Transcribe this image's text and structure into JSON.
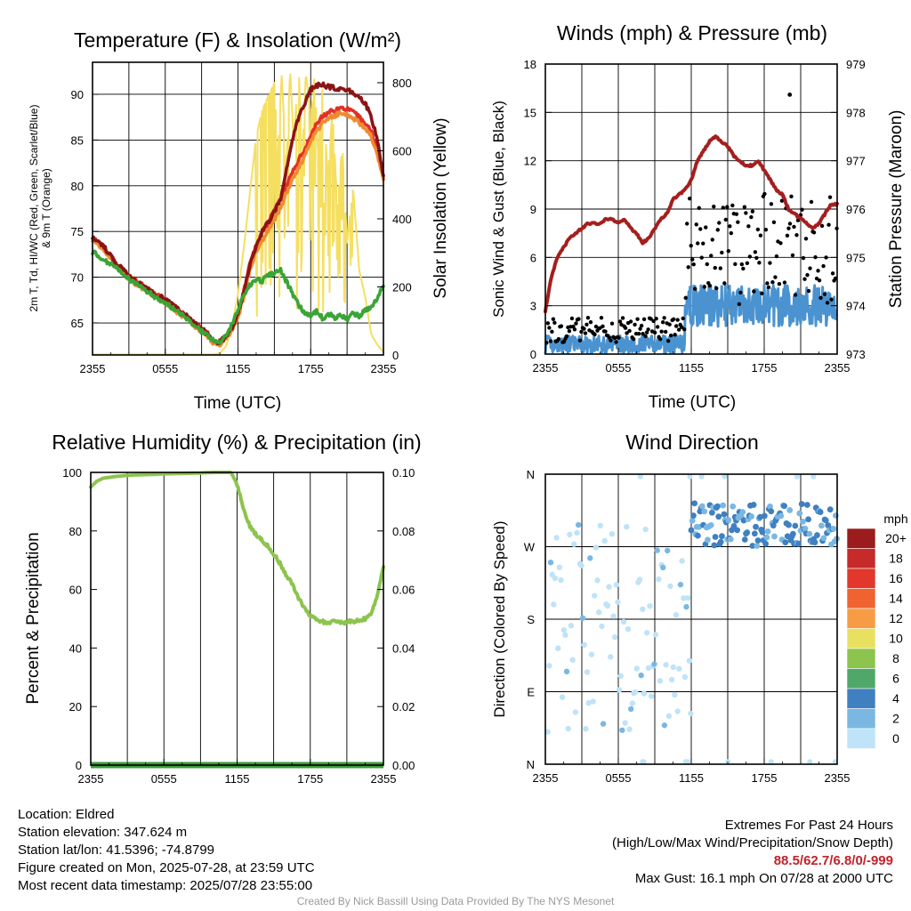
{
  "chart_data": [
    {
      "type": "line",
      "title": "Temperature (F) & Insolation (W/m²)",
      "ylabel_lines": [
        "2m T, Td, HI/WC (Red, Green, Scarlet/Blue)",
        "& 9m T (Orange)"
      ],
      "y2label": "Solar Insolation (Yellow)",
      "xlabel": "Time (UTC)",
      "x_ticks": [
        "2355",
        "0555",
        "1155",
        "1755",
        "2355"
      ],
      "x_range_hours": [
        0,
        24
      ],
      "ylim": [
        61.5,
        93.5
      ],
      "y_ticks": [
        65,
        70,
        75,
        80,
        85,
        90
      ],
      "y2lim": [
        0,
        860
      ],
      "y2_ticks": [
        0,
        200,
        400,
        600,
        800
      ],
      "series": [
        {
          "color": "#e03127",
          "axis": "left",
          "x": [
            0,
            1,
            2,
            3,
            4,
            5,
            6,
            7,
            8,
            9,
            9.5,
            10,
            10.5,
            11,
            11.5,
            12,
            12.5,
            13,
            13.5,
            14,
            14.5,
            15,
            15.5,
            16,
            16.5,
            17,
            17.5,
            18,
            18.5,
            19,
            19.5,
            20,
            20.5,
            21,
            21.5,
            22,
            22.5,
            23,
            23.5,
            24
          ],
          "y": [
            74.5,
            73.2,
            71.5,
            70.1,
            69.2,
            68.3,
            67.6,
            66.5,
            65.5,
            64.3,
            63.8,
            63.0,
            62.9,
            63.5,
            64.5,
            66.0,
            68.5,
            71.5,
            73.5,
            75.0,
            76.0,
            77.2,
            78.5,
            80.0,
            81.5,
            82.8,
            84.0,
            85.5,
            86.8,
            87.6,
            88.0,
            88.3,
            88.5,
            88.4,
            88.0,
            87.5,
            86.8,
            86.0,
            84.0,
            81.0
          ]
        },
        {
          "color": "#f08a30",
          "axis": "left",
          "x": [
            0,
            1,
            2,
            3,
            4,
            5,
            6,
            7,
            8,
            9,
            9.5,
            10,
            10.5,
            11,
            11.5,
            12,
            12.5,
            13,
            13.5,
            14,
            14.5,
            15,
            15.5,
            16,
            16.5,
            17,
            17.5,
            18,
            18.5,
            19,
            19.5,
            20,
            20.5,
            21,
            21.5,
            22,
            22.5,
            23,
            23.5,
            24
          ],
          "y": [
            74.2,
            72.9,
            71.2,
            69.8,
            68.9,
            68.0,
            67.3,
            66.2,
            65.2,
            64.0,
            63.5,
            62.8,
            62.7,
            63.2,
            64.2,
            65.6,
            68.0,
            71.0,
            72.8,
            74.0,
            75.2,
            76.4,
            77.6,
            79.2,
            80.8,
            82.0,
            83.2,
            84.8,
            86.0,
            86.9,
            87.4,
            87.7,
            88.0,
            87.8,
            87.4,
            86.9,
            86.2,
            85.4,
            83.5,
            80.5
          ]
        },
        {
          "color": "#8b1414",
          "axis": "left",
          "x": [
            0,
            1,
            2,
            3,
            4,
            5,
            6,
            7,
            8,
            9,
            9.5,
            10,
            10.5,
            11,
            11.5,
            12,
            12.5,
            13,
            13.5,
            14,
            14.5,
            15,
            15.5,
            16,
            16.5,
            17,
            17.5,
            18,
            18.5,
            19,
            19.5,
            20,
            20.5,
            21,
            21.5,
            22,
            22.5,
            23,
            23.5,
            24
          ],
          "y": [
            74.5,
            73.2,
            71.5,
            70.1,
            69.2,
            68.3,
            67.6,
            66.5,
            65.5,
            64.3,
            63.8,
            63.0,
            62.9,
            63.5,
            64.5,
            66.0,
            68.5,
            71.5,
            73.5,
            75.0,
            76.0,
            77.2,
            78.5,
            82.0,
            85.0,
            87.5,
            89.0,
            90.5,
            91.0,
            91.0,
            90.8,
            90.7,
            90.5,
            90.5,
            90.2,
            89.8,
            89.0,
            87.5,
            85.0,
            81.0
          ]
        },
        {
          "color": "#3aa537",
          "axis": "left",
          "x": [
            0,
            1,
            2,
            3,
            4,
            5,
            6,
            7,
            8,
            9,
            9.5,
            10,
            10.5,
            11,
            11.5,
            12,
            12.5,
            13,
            13.5,
            14,
            14.5,
            15,
            15.5,
            16,
            16.5,
            17,
            17.5,
            18,
            18.5,
            19,
            19.5,
            20,
            20.5,
            21,
            21.5,
            22,
            22.5,
            23,
            23.5,
            24
          ],
          "y": [
            72.8,
            71.8,
            70.9,
            69.8,
            69.0,
            68.0,
            67.2,
            66.2,
            65.2,
            64.1,
            63.6,
            63.0,
            62.9,
            63.5,
            64.8,
            66.5,
            68.2,
            69.2,
            69.8,
            69.6,
            70.2,
            70.4,
            70.8,
            69.5,
            68.2,
            67.0,
            66.0,
            65.8,
            66.3,
            65.5,
            66.0,
            65.6,
            65.8,
            65.4,
            66.0,
            65.8,
            66.4,
            66.8,
            67.8,
            69.0
          ]
        },
        {
          "color": "#f5df60",
          "axis": "right",
          "x": [
            0,
            1,
            2,
            3,
            4,
            5,
            6,
            7,
            8,
            9,
            10,
            10.5,
            11,
            11.5,
            12,
            12.5,
            13,
            13.5,
            14,
            14.5,
            15,
            15.3,
            15.6,
            16,
            16.3,
            16.6,
            17,
            17.3,
            17.6,
            18,
            18.3,
            18.6,
            19,
            19.4,
            19.8,
            20.2,
            20.6,
            21,
            21.5,
            22,
            22.5,
            23,
            23.5,
            24
          ],
          "y": [
            2,
            2,
            2,
            2,
            2,
            2,
            2,
            2,
            2,
            2,
            2,
            5,
            25,
            80,
            180,
            320,
            480,
            640,
            720,
            760,
            800,
            600,
            820,
            560,
            840,
            620,
            850,
            580,
            830,
            700,
            810,
            600,
            800,
            520,
            720,
            430,
            620,
            330,
            490,
            250,
            170,
            60,
            30,
            8
          ]
        }
      ]
    },
    {
      "type": "scatter",
      "title": "Winds (mph) & Pressure (mb)",
      "ylabel": "Sonic Wind & Gust (Blue, Black)",
      "y2label": "Station Pressure (Maroon)",
      "xlabel": "Time (UTC)",
      "x_ticks": [
        "2355",
        "0555",
        "1155",
        "1755",
        "2355"
      ],
      "x_range_hours": [
        0,
        24
      ],
      "ylim": [
        0,
        18
      ],
      "y_ticks": [
        0,
        3,
        6,
        9,
        12,
        15,
        18
      ],
      "y2lim": [
        973,
        979
      ],
      "y2_ticks": [
        973,
        974,
        975,
        976,
        977,
        978,
        979
      ],
      "pressure": {
        "color": "#a51e1e",
        "x": [
          0,
          0.5,
          1,
          1.5,
          2,
          2.5,
          3,
          3.5,
          4,
          4.5,
          5,
          5.5,
          6,
          6.5,
          7,
          7.5,
          8,
          8.5,
          9,
          9.5,
          10,
          10.5,
          11,
          11.5,
          12,
          12.5,
          13,
          13.5,
          14,
          14.5,
          15,
          15.5,
          16,
          16.5,
          17,
          17.5,
          18,
          18.5,
          19,
          19.5,
          20,
          20.5,
          21,
          21.5,
          22,
          22.5,
          23,
          23.5,
          24
        ],
        "y": [
          973.9,
          974.6,
          975.0,
          975.2,
          975.4,
          975.5,
          975.6,
          975.7,
          975.7,
          975.7,
          975.8,
          975.8,
          975.7,
          975.8,
          975.6,
          975.5,
          975.3,
          975.4,
          975.6,
          975.8,
          975.9,
          976.2,
          976.3,
          976.4,
          976.6,
          977.0,
          977.2,
          977.4,
          977.5,
          977.4,
          977.3,
          977.1,
          977.0,
          976.9,
          976.9,
          977.0,
          976.8,
          976.6,
          976.4,
          976.3,
          976.0,
          975.9,
          975.8,
          975.7,
          975.6,
          975.7,
          975.9,
          976.1,
          976.1
        ]
      },
      "wind_baseline": [
        {
          "x_start": 0,
          "x_end": 11.5,
          "mean_mph": 0.6
        },
        {
          "x_start": 11.5,
          "x_end": 24,
          "mean_mph": 3.0
        }
      ],
      "wind_color": "#4a93d0",
      "gust_color": "#000000",
      "max_gust_point": {
        "x": 20.1,
        "y": 16.1
      }
    },
    {
      "type": "line",
      "title": "Relative Humidity (%) & Precipitation (in)",
      "ylabel": "Percent & Precipitation",
      "x_ticks": [
        "2355",
        "0555",
        "1155",
        "1755",
        "2355"
      ],
      "x_range_hours": [
        0,
        24
      ],
      "ylim": [
        0,
        100
      ],
      "y_ticks": [
        0,
        20,
        40,
        60,
        80,
        100
      ],
      "y2lim": [
        0,
        0.1
      ],
      "y2_ticks": [
        "0.00",
        "0.02",
        "0.04",
        "0.06",
        "0.08",
        "0.10"
      ],
      "series": [
        {
          "color": "#8cc44d",
          "axis": "left",
          "x": [
            0,
            0.5,
            1,
            2,
            3,
            4,
            5,
            6,
            7,
            8,
            9,
            10,
            11,
            11.5,
            12,
            12.5,
            13,
            13.5,
            14,
            14.5,
            15,
            15.5,
            16,
            16.5,
            17,
            17.5,
            18,
            18.5,
            19,
            19.5,
            20,
            20.5,
            21,
            21.5,
            22,
            22.5,
            23,
            23.5,
            24
          ],
          "y": [
            95,
            97,
            98,
            98.6,
            99,
            99.2,
            99.3,
            99.5,
            99.6,
            99.7,
            99.8,
            100,
            100,
            100,
            96,
            88,
            82,
            79,
            77,
            75,
            72,
            69,
            65,
            62,
            57,
            54,
            51,
            50,
            49,
            48.5,
            49,
            48.5,
            49,
            49,
            49.5,
            50,
            52,
            58,
            68
          ]
        },
        {
          "color": "#3d9b3a",
          "axis": "right",
          "x": [
            0,
            24
          ],
          "y": [
            0,
            0
          ]
        }
      ]
    },
    {
      "type": "scatter",
      "title": "Wind Direction",
      "ylabel": "Direction (Colored By Speed)",
      "x_ticks": [
        "2355",
        "0555",
        "1155",
        "1755",
        "2355"
      ],
      "x_range_hours": [
        0,
        24
      ],
      "y_ticks": [
        "N",
        "E",
        "S",
        "W",
        "N"
      ],
      "ylim_degrees": [
        0,
        360
      ],
      "points_summary": [
        {
          "x_start": 0,
          "x_end": 12,
          "direction_deg_range": [
            40,
            290
          ],
          "speed_mph": 1
        },
        {
          "x_start": 12,
          "x_end": 24,
          "direction_deg_range": [
            270,
            320
          ],
          "speed_mph": 4
        }
      ],
      "legend": {
        "title": "mph",
        "labels": [
          "20+",
          "18",
          "16",
          "14",
          "12",
          "10",
          "8",
          "6",
          "4",
          "2",
          "0"
        ],
        "colors": [
          "#9b1c1c",
          "#c72a2a",
          "#e2382c",
          "#f06330",
          "#f79c45",
          "#e8e05f",
          "#8cc44d",
          "#4fa86a",
          "#3f80c0",
          "#7ab7e3",
          "#bfe3f7"
        ]
      }
    }
  ],
  "info": {
    "location": "Location: Eldred",
    "elevation": "Station elevation: 347.624 m",
    "latlon": "Station lat/lon: 41.5396; -74.8799",
    "created": "Figure created on Mon, 2025-07-28, at 23:59 UTC",
    "recent": "Most recent data timestamp: 2025/07/28 23:55:00"
  },
  "extremes": {
    "heading": "Extremes For Past 24 Hours",
    "subheading": "(High/Low/Max Wind/Precipitation/Snow Depth)",
    "values": "88.5/62.7/6.8/0/-999",
    "max_gust": "Max Gust: 16.1 mph On 07/28 at 2000 UTC"
  },
  "credit": "Created By Nick Bassill Using Data Provided By The NYS Mesonet"
}
